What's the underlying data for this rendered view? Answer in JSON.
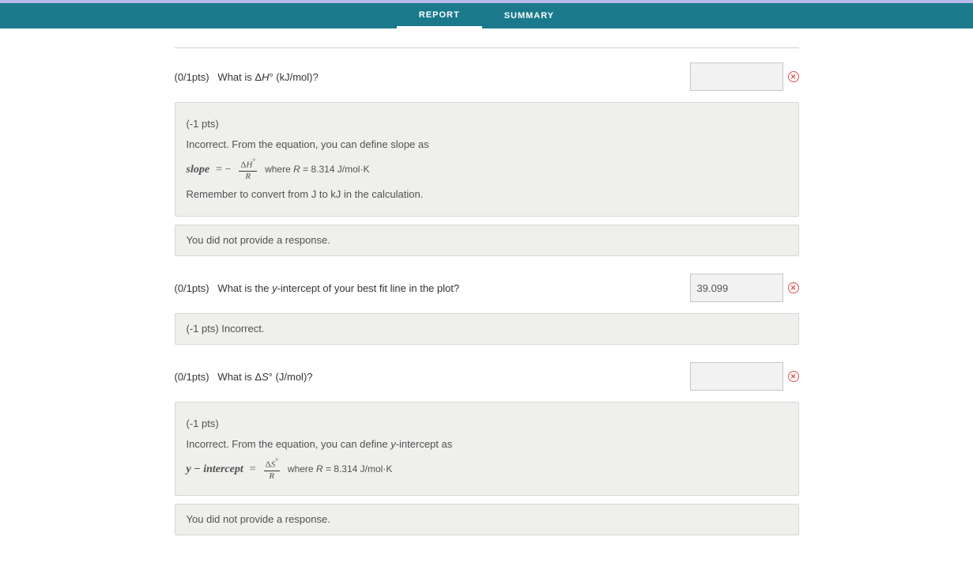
{
  "nav": {
    "tabs": [
      {
        "label": "REPORT",
        "active": true
      },
      {
        "label": "SUMMARY",
        "active": false
      }
    ]
  },
  "questions": [
    {
      "points": "(0/1pts)",
      "text_pre": "What is Δ",
      "text_var": "H",
      "text_sup": "°",
      "text_post": " (kJ/mol)?",
      "answer": "",
      "icon_color": "#d9534f",
      "feedback": {
        "pts_line": "(-1 pts)",
        "intro": "Incorrect. From the equation, you can define slope as",
        "eq_lhs": "slope",
        "eq_sign": "= −",
        "frac_num_pre": "Δ",
        "frac_num_var": "H",
        "frac_num_sup": "°",
        "frac_den": "R",
        "where_pre": "where ",
        "where_var": "R",
        "where_post": " = 8.314 J/mol·K",
        "outro": "Remember to convert from J to kJ in the calculation."
      },
      "no_response": "You did not provide a response."
    },
    {
      "points": "(0/1pts)",
      "text_pre": "What is the ",
      "text_var": "y",
      "text_sup": "",
      "text_post": "-intercept of your best fit line in the plot?",
      "answer": "39.099",
      "icon_color": "#d9534f",
      "feedback_short": "(-1 pts) Incorrect."
    },
    {
      "points": "(0/1pts)",
      "text_pre": "What is Δ",
      "text_var": "S",
      "text_sup": "°",
      "text_post": " (J/mol)?",
      "answer": "",
      "icon_color": "#d9534f",
      "feedback": {
        "pts_line": "(-1 pts)",
        "intro_pre": "Incorrect. From the equation, you can define ",
        "intro_var": "y",
        "intro_post": "-intercept as",
        "eq_lhs": "y − intercept",
        "eq_sign": "=",
        "frac_num_pre": "Δ",
        "frac_num_var": "S",
        "frac_num_sup": "°",
        "frac_den": "R",
        "where_pre": "where ",
        "where_var": "R",
        "where_post": " = 8.314 J/mol·K"
      },
      "no_response": "You did not provide a response."
    }
  ]
}
